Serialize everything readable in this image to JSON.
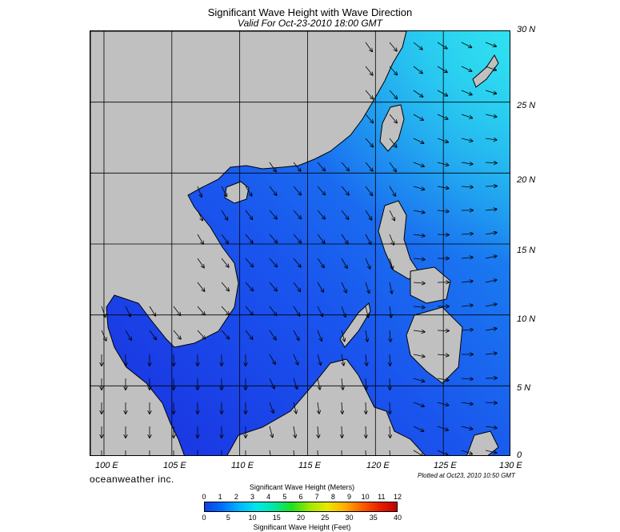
{
  "title": "Significant Wave Height with Wave Direction",
  "subtitle": "Valid For Oct-23-2010 18:00 GMT",
  "lat_labels": [
    "30 N",
    "25 N",
    "20 N",
    "15 N",
    "10 N",
    "5 N",
    "0"
  ],
  "lon_labels": [
    "100 E",
    "105 E",
    "110 E",
    "115 E",
    "120 E",
    "125 E",
    "130 E"
  ],
  "brand": "oceanweather inc.",
  "plotted": "Plotted at Oct23, 2010 10:50 GMT",
  "colorbar": {
    "meters_title": "Significant Wave Height (Meters)",
    "feet_title": "Significant Wave Height (Feet)",
    "meters_ticks": [
      "0",
      "1",
      "2",
      "3",
      "4",
      "5",
      "6",
      "7",
      "8",
      "9",
      "10",
      "11",
      "12"
    ],
    "feet_ticks": [
      "0",
      "5",
      "10",
      "15",
      "20",
      "25",
      "30",
      "35",
      "40"
    ],
    "colors": [
      "#1040e0",
      "#0070ff",
      "#00b8ff",
      "#00e8e8",
      "#00e8a0",
      "#20e020",
      "#a0e800",
      "#e8e800",
      "#ffb000",
      "#ff6000",
      "#e82000",
      "#c00000"
    ]
  },
  "map": {
    "lat_range": [
      0,
      30
    ],
    "lon_range": [
      99,
      130
    ],
    "land_color": "#c0c0c0",
    "sea_low_color": "#1a3ee8",
    "sea_mid_color": "#1a66f0",
    "sea_high_color": "#20b0f0",
    "grid": true
  }
}
